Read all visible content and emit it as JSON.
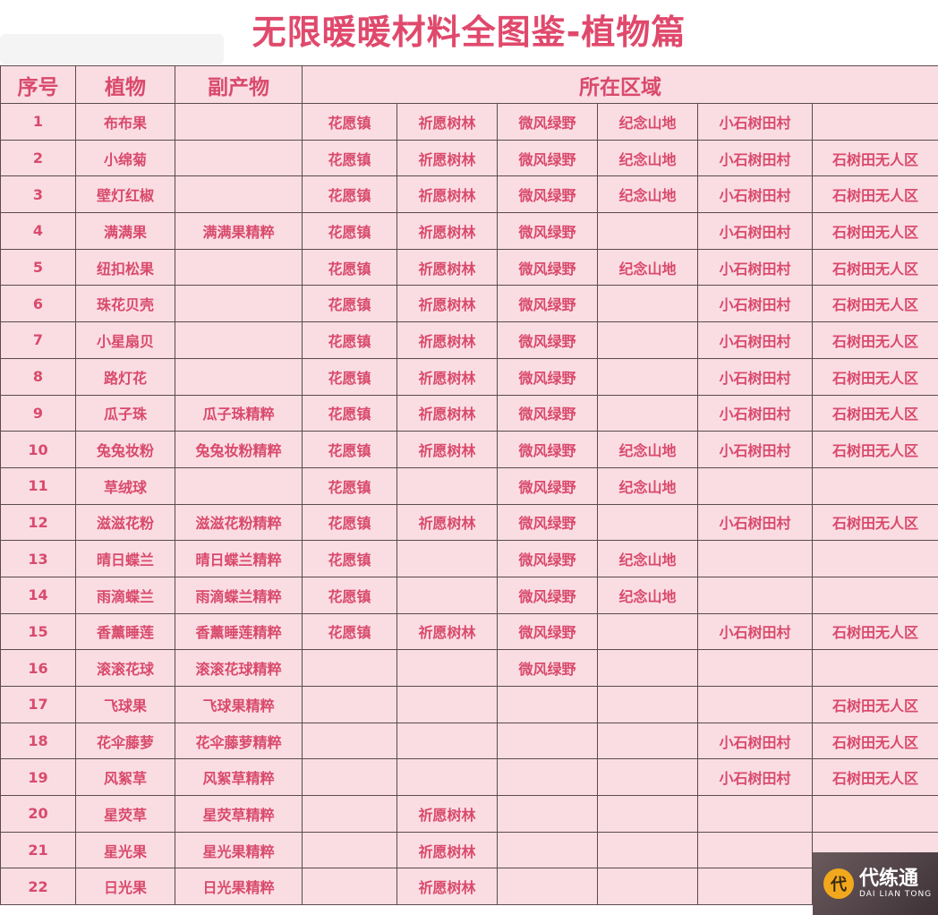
{
  "title": "无限暖暖材料全图鉴-植物篇",
  "headers": {
    "index": "序号",
    "plant": "植物",
    "byproduct": "副产物",
    "region": "所在区域"
  },
  "colors": {
    "text": "#d94a6c",
    "background": "#fadde3",
    "title": "#e0496c"
  },
  "rows": [
    {
      "no": "1",
      "plant": "布布果",
      "byproduct": "",
      "regions": [
        "花愿镇",
        "祈愿树林",
        "微风绿野",
        "纪念山地",
        "小石树田村",
        ""
      ]
    },
    {
      "no": "2",
      "plant": "小绵菊",
      "byproduct": "",
      "regions": [
        "花愿镇",
        "祈愿树林",
        "微风绿野",
        "纪念山地",
        "小石树田村",
        "石树田无人区"
      ]
    },
    {
      "no": "3",
      "plant": "壁灯红椒",
      "byproduct": "",
      "regions": [
        "花愿镇",
        "祈愿树林",
        "微风绿野",
        "纪念山地",
        "小石树田村",
        "石树田无人区"
      ]
    },
    {
      "no": "4",
      "plant": "满满果",
      "byproduct": "满满果精粹",
      "regions": [
        "花愿镇",
        "祈愿树林",
        "微风绿野",
        "",
        "小石树田村",
        "石树田无人区"
      ]
    },
    {
      "no": "5",
      "plant": "纽扣松果",
      "byproduct": "",
      "regions": [
        "花愿镇",
        "祈愿树林",
        "微风绿野",
        "纪念山地",
        "小石树田村",
        "石树田无人区"
      ]
    },
    {
      "no": "6",
      "plant": "珠花贝壳",
      "byproduct": "",
      "regions": [
        "花愿镇",
        "祈愿树林",
        "微风绿野",
        "",
        "小石树田村",
        "石树田无人区"
      ]
    },
    {
      "no": "7",
      "plant": "小星扇贝",
      "byproduct": "",
      "regions": [
        "花愿镇",
        "祈愿树林",
        "微风绿野",
        "",
        "小石树田村",
        "石树田无人区"
      ]
    },
    {
      "no": "8",
      "plant": "路灯花",
      "byproduct": "",
      "regions": [
        "花愿镇",
        "祈愿树林",
        "微风绿野",
        "",
        "小石树田村",
        "石树田无人区"
      ]
    },
    {
      "no": "9",
      "plant": "瓜子珠",
      "byproduct": "瓜子珠精粹",
      "regions": [
        "花愿镇",
        "祈愿树林",
        "微风绿野",
        "",
        "小石树田村",
        "石树田无人区"
      ]
    },
    {
      "no": "10",
      "plant": "兔兔妆粉",
      "byproduct": "兔兔妆粉精粹",
      "regions": [
        "花愿镇",
        "祈愿树林",
        "微风绿野",
        "纪念山地",
        "小石树田村",
        "石树田无人区"
      ]
    },
    {
      "no": "11",
      "plant": "草绒球",
      "byproduct": "",
      "regions": [
        "花愿镇",
        "",
        "微风绿野",
        "纪念山地",
        "",
        ""
      ]
    },
    {
      "no": "12",
      "plant": "滋滋花粉",
      "byproduct": "滋滋花粉精粹",
      "regions": [
        "花愿镇",
        "祈愿树林",
        "微风绿野",
        "",
        "小石树田村",
        "石树田无人区"
      ]
    },
    {
      "no": "13",
      "plant": "晴日蝶兰",
      "byproduct": "晴日蝶兰精粹",
      "regions": [
        "花愿镇",
        "",
        "微风绿野",
        "纪念山地",
        "",
        ""
      ]
    },
    {
      "no": "14",
      "plant": "雨滴蝶兰",
      "byproduct": "雨滴蝶兰精粹",
      "regions": [
        "花愿镇",
        "",
        "微风绿野",
        "纪念山地",
        "",
        ""
      ]
    },
    {
      "no": "15",
      "plant": "香薰睡莲",
      "byproduct": "香薰睡莲精粹",
      "regions": [
        "花愿镇",
        "祈愿树林",
        "微风绿野",
        "",
        "小石树田村",
        "石树田无人区"
      ]
    },
    {
      "no": "16",
      "plant": "滚滚花球",
      "byproduct": "滚滚花球精粹",
      "regions": [
        "",
        "",
        "微风绿野",
        "",
        "",
        ""
      ]
    },
    {
      "no": "17",
      "plant": "飞球果",
      "byproduct": "飞球果精粹",
      "regions": [
        "",
        "",
        "",
        "",
        "",
        "石树田无人区"
      ]
    },
    {
      "no": "18",
      "plant": "花伞藤萝",
      "byproduct": "花伞藤萝精粹",
      "regions": [
        "",
        "",
        "",
        "",
        "小石树田村",
        "石树田无人区"
      ]
    },
    {
      "no": "19",
      "plant": "风絮草",
      "byproduct": "风絮草精粹",
      "regions": [
        "",
        "",
        "",
        "",
        "小石树田村",
        "石树田无人区"
      ]
    },
    {
      "no": "20",
      "plant": "星荧草",
      "byproduct": "星荧草精粹",
      "regions": [
        "",
        "祈愿树林",
        "",
        "",
        "",
        ""
      ]
    },
    {
      "no": "21",
      "plant": "星光果",
      "byproduct": "星光果精粹",
      "regions": [
        "",
        "祈愿树林",
        "",
        "",
        "",
        ""
      ]
    },
    {
      "no": "22",
      "plant": "日光果",
      "byproduct": "日光果精粹",
      "regions": [
        "",
        "祈愿树林",
        "",
        "",
        "",
        ""
      ]
    }
  ],
  "watermark": {
    "cn": "代练通",
    "en": "DAI LIAN TONG"
  }
}
